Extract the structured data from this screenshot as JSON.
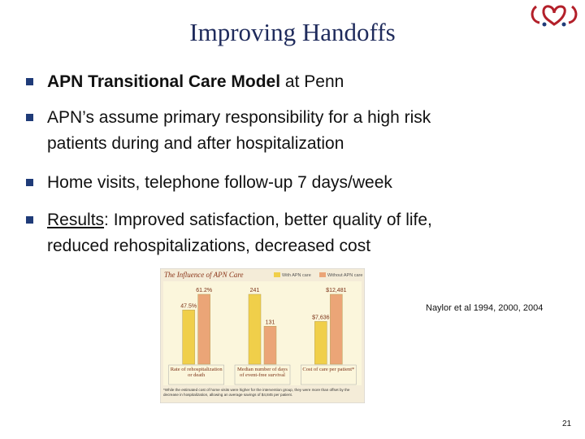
{
  "header": {
    "title": "Improving Handoffs"
  },
  "bullets": [
    {
      "bold": "APN Transitional Care Model",
      "text": "at Penn"
    },
    {
      "lines": [
        "APN’s assume primary responsibility for a high risk",
        "patients during and after hospitalization"
      ]
    },
    {
      "text": "Home visits, telephone follow-up 7 days/week"
    },
    {
      "underlined": "Results",
      "lines": [
        ": Improved satisfaction, better quality of life,",
        "reduced rehospitalizations, decreased cost"
      ]
    }
  ],
  "chart_data": {
    "type": "bar",
    "title": "The Influence of APN Care",
    "categories": [
      "Rate of rehospitalization or death",
      "Median number of days of event-free survival",
      "Cost of care per patient*"
    ],
    "series": [
      {
        "name": "With APN care",
        "color": "#f0cf4a",
        "values": [
          47.5,
          241,
          7636
        ],
        "value_labels": [
          "47.5%",
          "241",
          "$7,636"
        ]
      },
      {
        "name": "Without APN care",
        "color": "#eba577",
        "values": [
          61.2,
          131,
          12481
        ],
        "value_labels": [
          "61.2%",
          "131",
          "$12,481"
        ]
      }
    ],
    "footnote": "*While the estimated cost of home visits were higher for the intervention group, they were more than offset by the decrease in hospitalization, allowing an average savings of $4,845 per patient."
  },
  "citation": "Naylor et al 1994, 2000, 2004",
  "footer": {
    "page_number": "21"
  }
}
